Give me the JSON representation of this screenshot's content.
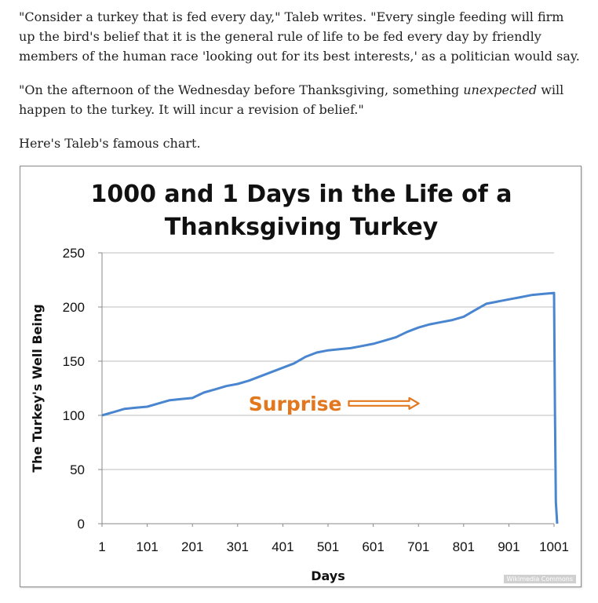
{
  "article": {
    "paragraph1": "\"Consider a turkey that is fed every day,\" Taleb writes. \"Every single feeding will firm up the bird's belief that it is the general rule of life to be fed every day by friendly members of the human race 'looking out for its best interests,' as a politician would say.",
    "paragraph2_before": "\"On the afternoon of the Wednesday before Thanksgiving, something ",
    "paragraph2_emphasis": "unexpected",
    "paragraph2_after": " will happen to the turkey. It will incur a revision of belief.\"",
    "paragraph3": "Here's Taleb's famous chart."
  },
  "chart_data": {
    "type": "line",
    "title_line1": "1000 and 1 Days in the Life of a",
    "title_line2": "Thanksgiving Turkey",
    "xlabel": "Days",
    "ylabel": "The Turkey's Well Being",
    "xlim": [
      1,
      1001
    ],
    "ylim": [
      0,
      250
    ],
    "x_ticks": [
      1,
      101,
      201,
      301,
      401,
      501,
      601,
      701,
      801,
      901,
      1001
    ],
    "y_ticks": [
      0,
      50,
      100,
      150,
      200,
      250
    ],
    "grid": "horizontal",
    "series": [
      {
        "color": "#4a86cf",
        "x": [
          1,
          26,
          51,
          76,
          101,
          126,
          151,
          176,
          201,
          226,
          251,
          276,
          301,
          326,
          351,
          376,
          401,
          426,
          451,
          476,
          501,
          526,
          551,
          576,
          601,
          626,
          651,
          676,
          701,
          726,
          751,
          776,
          801,
          826,
          851,
          876,
          901,
          926,
          951,
          976,
          1001,
          1003,
          1005,
          1008
        ],
        "y": [
          100,
          103,
          106,
          107,
          108,
          111,
          114,
          115,
          116,
          121,
          124,
          127,
          129,
          132,
          136,
          140,
          144,
          148,
          154,
          158,
          160,
          161,
          162,
          164,
          166,
          169,
          172,
          177,
          181,
          184,
          186,
          188,
          191,
          197,
          203,
          205,
          207,
          209,
          211,
          212,
          213,
          100,
          20,
          0
        ]
      }
    ],
    "annotation": {
      "text": "Surprise",
      "color": "#e2771e",
      "x": 705,
      "y": 111
    }
  },
  "watermark": "Wikimedia Commons"
}
